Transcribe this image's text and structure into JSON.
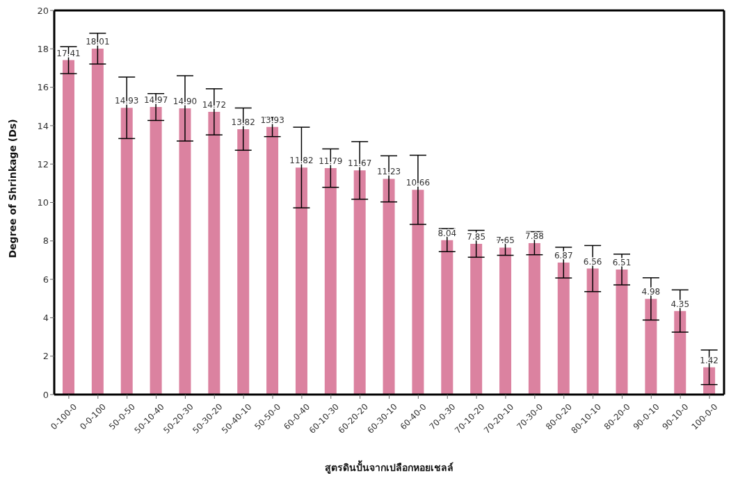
{
  "chart_data": {
    "type": "bar",
    "xlabel": "สูตรดินปั้นจากเปลือกหอยเชลล์",
    "ylabel": "Degree of Shrinkage (Ds)",
    "categories": [
      "0-100-0",
      "0-0-100",
      "50-0-50",
      "50-10-40",
      "50-20-30",
      "50-30-20",
      "50-40-10",
      "50-50-0",
      "60-0-40",
      "60-10-30",
      "60-20-20",
      "60-30-10",
      "60-40-0",
      "70-0-30",
      "70-10-20",
      "70-20-10",
      "70-30-0",
      "80-0-20",
      "80-10-10",
      "80-20-0",
      "90-0-10",
      "90-10-0",
      "100-0-0"
    ],
    "values": [
      17.41,
      18.01,
      14.93,
      14.97,
      14.9,
      14.72,
      13.82,
      13.93,
      11.82,
      11.79,
      11.67,
      11.23,
      10.66,
      8.04,
      7.85,
      7.65,
      7.88,
      6.87,
      6.56,
      6.51,
      4.98,
      4.35,
      1.42
    ],
    "value_labels": [
      "17.41",
      "18.01",
      "14.93",
      "14.97",
      "14.90",
      "14.72",
      "13.82",
      "13.93",
      "11.82",
      "11.79",
      "11.67",
      "11.23",
      "10.66",
      "8.04",
      "7.85",
      "7.65",
      "7.88",
      "6.87",
      "6.56",
      "6.51",
      "4.98",
      "4.35",
      "1.42"
    ],
    "errors": [
      0.7,
      0.8,
      1.6,
      0.7,
      1.7,
      1.2,
      1.1,
      0.5,
      2.1,
      1.0,
      1.5,
      1.2,
      1.8,
      0.6,
      0.7,
      0.4,
      0.6,
      0.8,
      1.2,
      0.8,
      1.1,
      1.1,
      0.9
    ],
    "color": "#db82a0",
    "ylim": [
      0,
      20
    ],
    "yticks": [
      0,
      2,
      4,
      6,
      8,
      10,
      12,
      14,
      16,
      18,
      20
    ],
    "grid": false
  }
}
